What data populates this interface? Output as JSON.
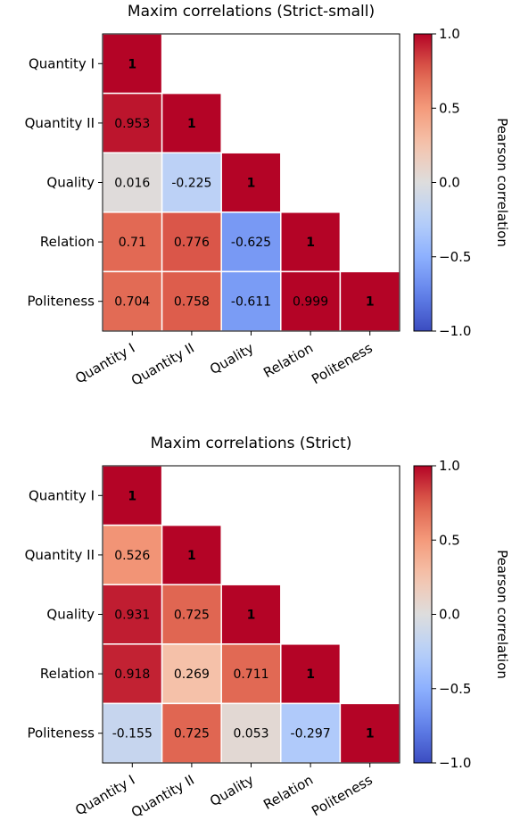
{
  "chart_data": [
    {
      "type": "heatmap",
      "title": "Maxim correlations (Strict-small)",
      "rows": [
        "Quantity I",
        "Quantity II",
        "Quality",
        "Relation",
        "Politeness"
      ],
      "cols": [
        "Quantity I",
        "Quantity II",
        "Quality",
        "Relation",
        "Politeness"
      ],
      "values": [
        [
          1,
          null,
          null,
          null,
          null
        ],
        [
          0.953,
          1,
          null,
          null,
          null
        ],
        [
          0.016,
          -0.225,
          1,
          null,
          null
        ],
        [
          0.71,
          0.776,
          -0.625,
          1,
          null
        ],
        [
          0.704,
          0.758,
          -0.611,
          0.999,
          1
        ]
      ],
      "colorbar": {
        "label": "Pearson correlation",
        "range": [
          -1.0,
          1.0
        ],
        "ticks": [
          "1.0",
          "0.5",
          "0.0",
          "−0.5",
          "−1.0"
        ],
        "colormap": "coolwarm"
      }
    },
    {
      "type": "heatmap",
      "title": "Maxim correlations (Strict)",
      "rows": [
        "Quantity I",
        "Quantity II",
        "Quality",
        "Relation",
        "Politeness"
      ],
      "cols": [
        "Quantity I",
        "Quantity II",
        "Quality",
        "Relation",
        "Politeness"
      ],
      "values": [
        [
          1,
          null,
          null,
          null,
          null
        ],
        [
          0.526,
          1,
          null,
          null,
          null
        ],
        [
          0.931,
          0.725,
          1,
          null,
          null
        ],
        [
          0.918,
          0.269,
          0.711,
          1,
          null
        ],
        [
          -0.155,
          0.725,
          0.053,
          -0.297,
          1
        ]
      ],
      "colorbar": {
        "label": "Pearson correlation",
        "range": [
          -1.0,
          1.0
        ],
        "ticks": [
          "1.0",
          "0.5",
          "0.0",
          "−0.5",
          "−1.0"
        ],
        "colormap": "coolwarm"
      }
    }
  ]
}
